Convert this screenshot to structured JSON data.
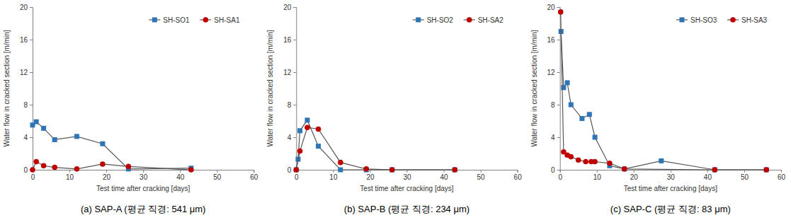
{
  "chart_data": [
    {
      "type": "line",
      "title": "(a) SAP-A (평균 직경: 541 μm)",
      "x_label": "Test time after cracking [days]",
      "y_label": "Water flow in cracked section [m/min]",
      "xlim": [
        0,
        60
      ],
      "xticks": [
        0,
        10,
        20,
        30,
        40,
        50,
        60
      ],
      "ylim": [
        0,
        20
      ],
      "yticks": [
        0,
        4,
        8,
        12,
        16,
        20
      ],
      "grid": false,
      "legend": "top-right",
      "series": [
        {
          "name": "SH-SO1",
          "color": "#2e75b6",
          "marker": "square",
          "x": [
            0,
            1,
            3,
            6,
            12,
            19,
            26,
            43
          ],
          "values": [
            5.5,
            5.9,
            5.1,
            3.7,
            4.1,
            3.2,
            0.1,
            0.2
          ]
        },
        {
          "name": "SH-SA1",
          "color": "#c00000",
          "marker": "circle",
          "x": [
            0,
            1,
            3,
            6,
            12,
            19,
            26,
            43
          ],
          "values": [
            0,
            1.0,
            0.5,
            0.3,
            0.1,
            0.7,
            0.4,
            0
          ]
        }
      ]
    },
    {
      "type": "line",
      "title": "(b) SAP-B (평균 직경: 234 μm)",
      "x_label": "Test time after cracking [days]",
      "y_label": "Water flow in cracked section [m/min]",
      "xlim": [
        0,
        60
      ],
      "xticks": [
        0,
        10,
        20,
        30,
        40,
        50,
        60
      ],
      "ylim": [
        0,
        20
      ],
      "yticks": [
        0,
        4,
        8,
        12,
        16,
        20
      ],
      "grid": false,
      "legend": "top-right",
      "series": [
        {
          "name": "SH-SO2",
          "color": "#2e75b6",
          "marker": "square",
          "x": [
            0,
            0.5,
            1,
            3,
            6,
            12,
            19,
            26,
            43
          ],
          "values": [
            0,
            1.3,
            4.8,
            6.1,
            2.9,
            0,
            0,
            0,
            0
          ]
        },
        {
          "name": "SH-SA2",
          "color": "#c00000",
          "marker": "circle",
          "x": [
            0,
            1,
            3,
            6,
            12,
            19,
            26,
            43
          ],
          "values": [
            0,
            2.3,
            5.2,
            5.0,
            0.9,
            0.1,
            0,
            0
          ]
        }
      ]
    },
    {
      "type": "line",
      "title": "(c) SAP-C (평균 직경: 83 μm)",
      "x_label": "Test time after cracking [days]",
      "y_label": "Water flow in cracked section [m/min]",
      "xlim": [
        0,
        60
      ],
      "xticks": [
        0,
        10,
        20,
        30,
        40,
        50,
        60
      ],
      "ylim": [
        0,
        20
      ],
      "yticks": [
        0,
        4,
        8,
        12,
        16,
        20
      ],
      "grid": false,
      "legend": "top-right",
      "series": [
        {
          "name": "SH-SO3",
          "color": "#2e75b6",
          "marker": "square",
          "x": [
            0.3,
            1,
            2,
            3,
            6,
            8,
            9.5,
            13.5,
            17.5,
            27.5,
            42,
            56
          ],
          "values": [
            17,
            10.1,
            10.7,
            8.0,
            6.3,
            6.8,
            4.0,
            0.5,
            0.1,
            1.1,
            0,
            0
          ]
        },
        {
          "name": "SH-SA3",
          "color": "#c00000",
          "marker": "circle",
          "x": [
            0.2,
            1,
            2,
            3,
            5,
            7,
            8.5,
            9.5,
            13.5,
            17.5,
            42,
            56
          ],
          "values": [
            19.4,
            2.2,
            1.8,
            1.6,
            1.2,
            1.0,
            1.0,
            1.0,
            0.8,
            0.1,
            0,
            0
          ]
        }
      ]
    }
  ]
}
